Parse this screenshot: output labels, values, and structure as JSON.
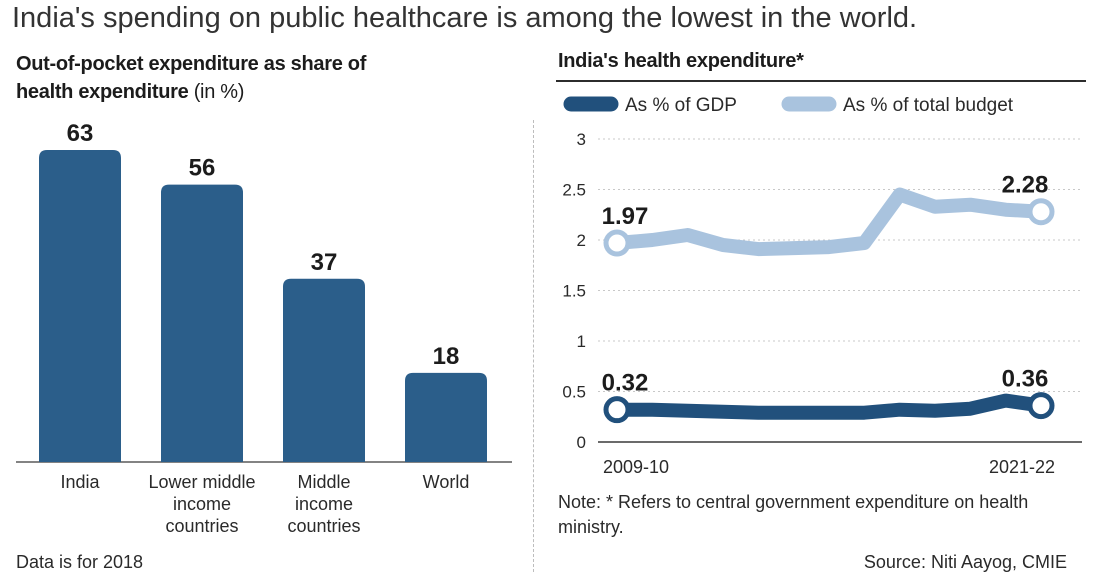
{
  "headline": "India's spending on public healthcare is among the lowest in the world.",
  "colors": {
    "bar": "#2b5e8a",
    "gdp_line": "#21507c",
    "budget_line": "#a9c3de",
    "grid": "#c8c8c8",
    "axis": "#3a3a3a"
  },
  "chart_data": [
    {
      "type": "bar",
      "title": "Out-of-pocket expenditure as share of",
      "title_line2": "health expenditure",
      "title_unit": "(in %)",
      "categories": [
        [
          "India"
        ],
        [
          "Lower middle",
          "income",
          "countries"
        ],
        [
          "Middle",
          "income",
          "countries"
        ],
        [
          "World"
        ]
      ],
      "values": [
        63,
        56,
        37,
        18
      ],
      "data_labels": [
        "63",
        "56",
        "37",
        "18"
      ],
      "ylim": [
        0,
        63
      ],
      "footnote": "Data is for 2018"
    },
    {
      "type": "line",
      "title": "India's health expenditure*",
      "x": [
        "2009-10",
        "",
        "",
        "",
        "",
        "",
        "",
        "",
        "",
        "",
        "",
        "",
        "2021-22"
      ],
      "x_tick_labels": [
        "2009-10",
        "2021-22"
      ],
      "ylim": [
        0,
        3
      ],
      "yticks": [
        "0",
        "0.5",
        "1",
        "1.5",
        "2",
        "2.5",
        "3"
      ],
      "grid": true,
      "legend_position": "top",
      "series": [
        {
          "name": "As % of GDP",
          "values": [
            0.32,
            0.32,
            0.31,
            0.3,
            0.29,
            0.29,
            0.29,
            0.29,
            0.32,
            0.31,
            0.33,
            0.41,
            0.36
          ],
          "start_label": "0.32",
          "end_label": "0.36"
        },
        {
          "name": "As % of total budget",
          "values": [
            1.97,
            2.0,
            2.05,
            1.95,
            1.91,
            1.92,
            1.93,
            1.97,
            2.45,
            2.33,
            2.35,
            2.3,
            2.28
          ],
          "start_label": "1.97",
          "end_label": "2.28"
        }
      ],
      "note": "Note: * Refers to central government expenditure on health ministry.",
      "source": "Source: Niti Aayog, CMIE"
    }
  ]
}
